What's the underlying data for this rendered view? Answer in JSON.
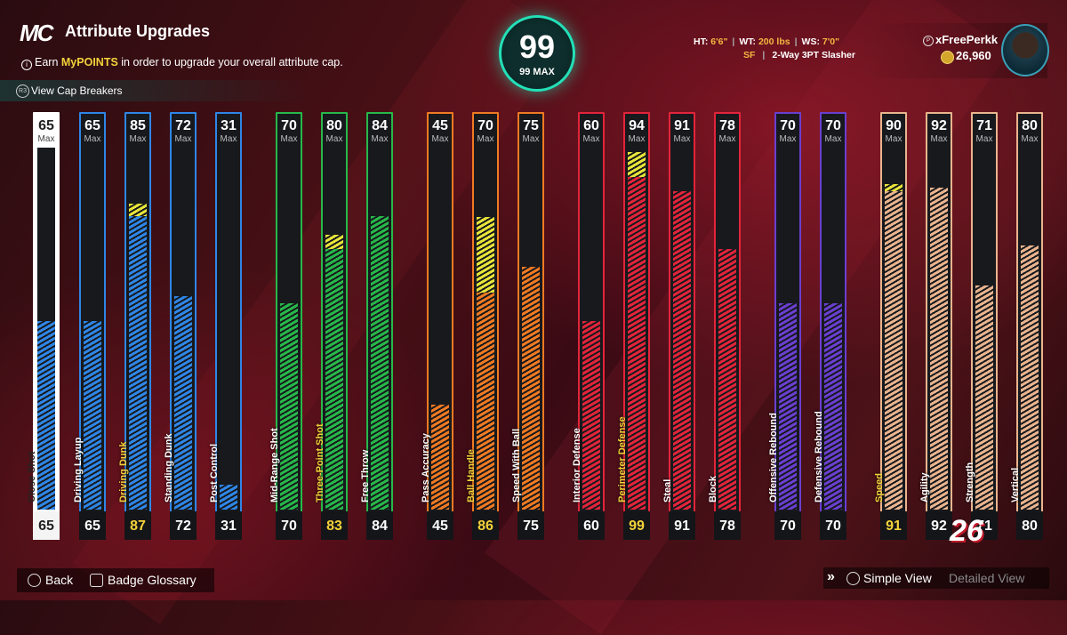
{
  "header": {
    "logo": "MC",
    "title": "Attribute Upgrades",
    "info_prefix": "Earn ",
    "info_highlight": "MyPOINTS",
    "info_suffix": " in order to upgrade your overall attribute cap.",
    "cap_breakers_label": "View Cap Breakers"
  },
  "overall": {
    "value": "99",
    "max_label": "99 MAX"
  },
  "player": {
    "ht_label": "HT:",
    "ht": "6'6\"",
    "wt_label": "WT:",
    "wt": "200 lbs",
    "ws_label": "WS:",
    "ws": "7'0\"",
    "position": "SF",
    "archetype": "2-Way 3PT Slasher"
  },
  "profile": {
    "username": "xFreePerkk",
    "vc": "26,960"
  },
  "colors": {
    "finishing": "#2f86e6",
    "shooting": "#27b84a",
    "playmaking": "#f07a22",
    "defense": "#e3243a",
    "rebounding": "#6a3fd0",
    "physicals": "#eab48e",
    "boost": "#e8e53a",
    "boost_value": "#f4d23a"
  },
  "attributes": [
    {
      "name": "Close Shot",
      "max": "65",
      "value": "65",
      "fill_pct": 52,
      "boost_pct": 0,
      "group": "finishing",
      "selected": true
    },
    {
      "name": "Driving Layup",
      "max": "65",
      "value": "65",
      "fill_pct": 52,
      "boost_pct": 0,
      "group": "finishing"
    },
    {
      "name": "Driving Dunk",
      "max": "85",
      "value": "87",
      "fill_pct": 81,
      "boost_pct": 3.5,
      "group": "finishing",
      "boosted": true
    },
    {
      "name": "Standing Dunk",
      "max": "72",
      "value": "72",
      "fill_pct": 59,
      "boost_pct": 0,
      "group": "finishing"
    },
    {
      "name": "Post Control",
      "max": "31",
      "value": "31",
      "fill_pct": 7,
      "boost_pct": 0,
      "group": "finishing"
    },
    {
      "name": "Mid-Range Shot",
      "max": "70",
      "value": "70",
      "fill_pct": 57,
      "boost_pct": 0,
      "group": "shooting"
    },
    {
      "name": "Three-Point Shot",
      "max": "80",
      "value": "83",
      "fill_pct": 72,
      "boost_pct": 4,
      "group": "shooting",
      "boosted": true
    },
    {
      "name": "Free Throw",
      "max": "84",
      "value": "84",
      "fill_pct": 81,
      "boost_pct": 0,
      "group": "shooting"
    },
    {
      "name": "Pass Accuracy",
      "max": "45",
      "value": "45",
      "fill_pct": 29,
      "boost_pct": 0,
      "group": "playmaking"
    },
    {
      "name": "Ball Handle",
      "max": "70",
      "value": "86",
      "fill_pct": 60,
      "boost_pct": 21,
      "group": "playmaking",
      "boosted": true
    },
    {
      "name": "Speed With Ball",
      "max": "75",
      "value": "75",
      "fill_pct": 67,
      "boost_pct": 0,
      "group": "playmaking"
    },
    {
      "name": "Interior Defense",
      "max": "60",
      "value": "60",
      "fill_pct": 52,
      "boost_pct": 0,
      "group": "defense"
    },
    {
      "name": "Perimeter Defense",
      "max": "94",
      "value": "99",
      "fill_pct": 92,
      "boost_pct": 7,
      "group": "defense",
      "boosted": true
    },
    {
      "name": "Steal",
      "max": "91",
      "value": "91",
      "fill_pct": 88,
      "boost_pct": 0,
      "group": "defense"
    },
    {
      "name": "Block",
      "max": "78",
      "value": "78",
      "fill_pct": 72,
      "boost_pct": 0,
      "group": "defense"
    },
    {
      "name": "Offensive Rebound",
      "max": "70",
      "value": "70",
      "fill_pct": 57,
      "boost_pct": 0,
      "group": "rebounding"
    },
    {
      "name": "Defensive Rebound",
      "max": "70",
      "value": "70",
      "fill_pct": 57,
      "boost_pct": 0,
      "group": "rebounding"
    },
    {
      "name": "Speed",
      "max": "90",
      "value": "91",
      "fill_pct": 88,
      "boost_pct": 2,
      "group": "physicals",
      "boosted": true
    },
    {
      "name": "Agility",
      "max": "92",
      "value": "92",
      "fill_pct": 89,
      "boost_pct": 0,
      "group": "physicals"
    },
    {
      "name": "Strength",
      "max": "71",
      "value": "71",
      "fill_pct": 62,
      "boost_pct": 0,
      "group": "physicals"
    },
    {
      "name": "Vertical",
      "max": "80",
      "value": "80",
      "fill_pct": 73,
      "boost_pct": 0,
      "group": "physicals"
    }
  ],
  "max_label": "Max",
  "footer": {
    "back_label": "Back",
    "glossary_label": "Badge Glossary",
    "simple_view": "Simple View",
    "detailed_view": "Detailed View",
    "game_logo": "26"
  }
}
